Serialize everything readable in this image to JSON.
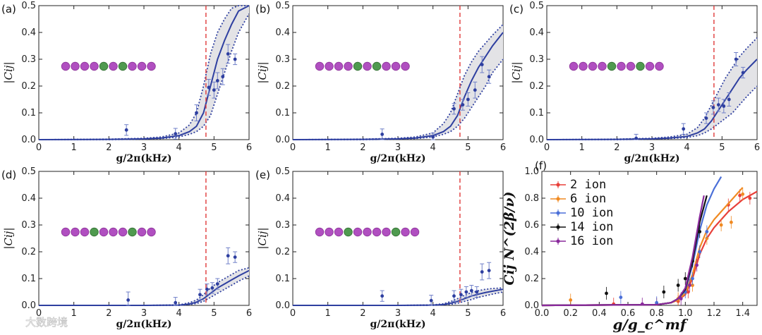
{
  "watermark": "大数跨境",
  "chart_data": [
    {
      "label": "(a)",
      "type": "line",
      "xlabel": "g/2π(kHz)",
      "ylabel": "|Cij|",
      "xlim": [
        0,
        6
      ],
      "ylim": [
        0,
        0.5
      ],
      "xticks": [
        "0",
        "1",
        "2",
        "3",
        "4",
        "5",
        "6"
      ],
      "yticks": [
        "0.0",
        "0.1",
        "0.2",
        "0.3",
        "0.4",
        "0.5"
      ],
      "critical_line_x": 4.77,
      "chain": [
        "purple",
        "purple",
        "purple",
        "purple",
        "green",
        "purple",
        "green",
        "purple",
        "purple",
        "purple"
      ],
      "theory": {
        "x": [
          0,
          2,
          3,
          3.5,
          4,
          4.3,
          4.5,
          4.7,
          4.9,
          5.1,
          5.3,
          5.5,
          5.7,
          6
        ],
        "mid": [
          0,
          0.001,
          0.003,
          0.006,
          0.015,
          0.03,
          0.05,
          0.1,
          0.2,
          0.3,
          0.37,
          0.43,
          0.48,
          0.5
        ],
        "upper": [
          0,
          0.002,
          0.005,
          0.01,
          0.025,
          0.055,
          0.1,
          0.2,
          0.32,
          0.4,
          0.45,
          0.49,
          0.5,
          0.5
        ],
        "lower": [
          0,
          0,
          0.002,
          0.004,
          0.01,
          0.02,
          0.03,
          0.05,
          0.09,
          0.17,
          0.25,
          0.33,
          0.4,
          0.47
        ]
      },
      "points": [
        {
          "x": 2.5,
          "y": 0.036,
          "err": 0.02
        },
        {
          "x": 3.9,
          "y": 0.022,
          "err": 0.02
        },
        {
          "x": 4.5,
          "y": 0.1,
          "err": 0.03
        },
        {
          "x": 4.85,
          "y": 0.195,
          "err": 0.03
        },
        {
          "x": 5.0,
          "y": 0.185,
          "err": 0.03
        },
        {
          "x": 5.1,
          "y": 0.22,
          "err": 0.03
        },
        {
          "x": 5.25,
          "y": 0.235,
          "err": 0.03
        },
        {
          "x": 5.4,
          "y": 0.32,
          "err": 0.035
        },
        {
          "x": 5.6,
          "y": 0.3,
          "err": 0.02
        }
      ]
    },
    {
      "label": "(b)",
      "type": "line",
      "xlabel": "g/2π(kHz)",
      "ylabel": "|Cij|",
      "xlim": [
        0,
        6
      ],
      "ylim": [
        0,
        0.5
      ],
      "xticks": [
        "0",
        "1",
        "2",
        "3",
        "4",
        "5",
        "6"
      ],
      "yticks": [
        "0.0",
        "0.1",
        "0.2",
        "0.3",
        "0.4",
        "0.5"
      ],
      "critical_line_x": 4.77,
      "chain": [
        "purple",
        "purple",
        "purple",
        "purple",
        "green",
        "purple",
        "green",
        "purple",
        "purple",
        "purple"
      ],
      "theory": {
        "x": [
          0,
          2,
          3,
          3.5,
          4,
          4.3,
          4.5,
          4.7,
          4.9,
          5.1,
          5.3,
          5.5,
          5.7,
          6
        ],
        "mid": [
          0,
          0.001,
          0.003,
          0.006,
          0.015,
          0.03,
          0.05,
          0.09,
          0.16,
          0.22,
          0.27,
          0.31,
          0.35,
          0.4
        ],
        "upper": [
          0,
          0.002,
          0.005,
          0.01,
          0.025,
          0.06,
          0.1,
          0.17,
          0.24,
          0.29,
          0.33,
          0.36,
          0.39,
          0.43
        ],
        "lower": [
          0,
          0,
          0.002,
          0.004,
          0.01,
          0.02,
          0.03,
          0.05,
          0.08,
          0.12,
          0.16,
          0.2,
          0.25,
          0.3
        ]
      },
      "points": [
        {
          "x": 2.55,
          "y": 0.02,
          "err": 0.02
        },
        {
          "x": 4.0,
          "y": 0.01,
          "err": 0.015
        },
        {
          "x": 4.6,
          "y": 0.115,
          "err": 0.02
        },
        {
          "x": 4.85,
          "y": 0.13,
          "err": 0.02
        },
        {
          "x": 5.0,
          "y": 0.15,
          "err": 0.025
        },
        {
          "x": 5.2,
          "y": 0.185,
          "err": 0.03
        },
        {
          "x": 5.4,
          "y": 0.28,
          "err": 0.03
        },
        {
          "x": 5.6,
          "y": 0.235,
          "err": 0.025
        }
      ]
    },
    {
      "label": "(c)",
      "type": "line",
      "xlabel": "g/2π(kHz)",
      "ylabel": "|Cij|",
      "xlim": [
        0,
        6
      ],
      "ylim": [
        0,
        0.5
      ],
      "xticks": [
        "0",
        "1",
        "2",
        "3",
        "4",
        "5",
        "6"
      ],
      "yticks": [
        "0.0",
        "0.1",
        "0.2",
        "0.3",
        "0.4",
        "0.5"
      ],
      "critical_line_x": 4.77,
      "chain": [
        "purple",
        "purple",
        "purple",
        "purple",
        "green",
        "purple",
        "purple",
        "green",
        "purple",
        "purple"
      ],
      "theory": {
        "x": [
          0,
          2,
          3,
          3.5,
          4,
          4.3,
          4.5,
          4.7,
          4.9,
          5.1,
          5.3,
          5.5,
          5.7,
          6
        ],
        "mid": [
          0,
          0.001,
          0.003,
          0.006,
          0.012,
          0.025,
          0.04,
          0.07,
          0.11,
          0.15,
          0.19,
          0.23,
          0.26,
          0.3
        ],
        "upper": [
          0,
          0.002,
          0.005,
          0.01,
          0.02,
          0.045,
          0.08,
          0.13,
          0.18,
          0.23,
          0.27,
          0.31,
          0.34,
          0.38
        ],
        "lower": [
          0,
          0,
          0.002,
          0.004,
          0.008,
          0.015,
          0.025,
          0.04,
          0.06,
          0.08,
          0.1,
          0.13,
          0.16,
          0.2
        ]
      },
      "points": [
        {
          "x": 2.55,
          "y": 0.005,
          "err": 0.015
        },
        {
          "x": 3.9,
          "y": 0.04,
          "err": 0.02
        },
        {
          "x": 4.55,
          "y": 0.08,
          "err": 0.02
        },
        {
          "x": 4.75,
          "y": 0.12,
          "err": 0.025
        },
        {
          "x": 4.9,
          "y": 0.13,
          "err": 0.025
        },
        {
          "x": 5.05,
          "y": 0.125,
          "err": 0.025
        },
        {
          "x": 5.2,
          "y": 0.15,
          "err": 0.025
        },
        {
          "x": 5.4,
          "y": 0.3,
          "err": 0.025
        },
        {
          "x": 5.6,
          "y": 0.25,
          "err": 0.02
        }
      ]
    },
    {
      "label": "(d)",
      "type": "line",
      "xlabel": "g/2π(kHz)",
      "ylabel": "|Cij|",
      "xlim": [
        0,
        6
      ],
      "ylim": [
        0,
        0.5
      ],
      "xticks": [
        "0",
        "1",
        "2",
        "3",
        "4",
        "5",
        "6"
      ],
      "yticks": [
        "0.0",
        "0.1",
        "0.2",
        "0.3",
        "0.4",
        "0.5"
      ],
      "critical_line_x": 4.77,
      "chain": [
        "purple",
        "purple",
        "purple",
        "green",
        "purple",
        "purple",
        "purple",
        "green",
        "purple",
        "purple"
      ],
      "theory": {
        "x": [
          0,
          3,
          4,
          4.3,
          4.5,
          4.7,
          4.9,
          5.1,
          5.3,
          5.5,
          5.7,
          6
        ],
        "mid": [
          0,
          0,
          0.001,
          0.005,
          0.012,
          0.025,
          0.045,
          0.065,
          0.08,
          0.095,
          0.11,
          0.13
        ],
        "upper": [
          0,
          0,
          0.002,
          0.01,
          0.02,
          0.04,
          0.065,
          0.085,
          0.1,
          0.115,
          0.13,
          0.14
        ],
        "lower": [
          0,
          0,
          0,
          0.003,
          0.007,
          0.015,
          0.03,
          0.045,
          0.06,
          0.075,
          0.09,
          0.11
        ]
      },
      "points": [
        {
          "x": 2.55,
          "y": 0.02,
          "err": 0.03
        },
        {
          "x": 3.9,
          "y": 0.01,
          "err": 0.02
        },
        {
          "x": 4.6,
          "y": 0.04,
          "err": 0.02
        },
        {
          "x": 4.8,
          "y": 0.06,
          "err": 0.02
        },
        {
          "x": 4.95,
          "y": 0.065,
          "err": 0.02
        },
        {
          "x": 5.1,
          "y": 0.08,
          "err": 0.02
        },
        {
          "x": 5.4,
          "y": 0.185,
          "err": 0.03
        },
        {
          "x": 5.6,
          "y": 0.18,
          "err": 0.02
        }
      ]
    },
    {
      "label": "(e)",
      "type": "line",
      "xlabel": "g/2π(kHz)",
      "ylabel": "|Cij|",
      "xlim": [
        0,
        6
      ],
      "ylim": [
        0,
        0.5
      ],
      "xticks": [
        "0",
        "1",
        "2",
        "3",
        "4",
        "5",
        "6"
      ],
      "yticks": [
        "0.0",
        "0.1",
        "0.2",
        "0.3",
        "0.4",
        "0.5"
      ],
      "critical_line_x": 4.77,
      "chain": [
        "purple",
        "purple",
        "purple",
        "green",
        "purple",
        "purple",
        "purple",
        "purple",
        "green",
        "purple",
        "purple"
      ],
      "theory": {
        "x": [
          0,
          3,
          4,
          4.3,
          4.5,
          4.7,
          4.9,
          5.1,
          5.3,
          5.5,
          5.7,
          6
        ],
        "mid": [
          0,
          0,
          0.001,
          0.003,
          0.008,
          0.015,
          0.025,
          0.035,
          0.042,
          0.048,
          0.053,
          0.06
        ],
        "upper": [
          0,
          0,
          0.002,
          0.006,
          0.014,
          0.025,
          0.038,
          0.048,
          0.055,
          0.06,
          0.063,
          0.065
        ],
        "lower": [
          0,
          0,
          0,
          0.002,
          0.004,
          0.008,
          0.015,
          0.022,
          0.03,
          0.036,
          0.042,
          0.05
        ]
      },
      "points": [
        {
          "x": 2.55,
          "y": 0.035,
          "err": 0.02
        },
        {
          "x": 3.95,
          "y": 0.018,
          "err": 0.02
        },
        {
          "x": 4.6,
          "y": 0.035,
          "err": 0.02
        },
        {
          "x": 4.8,
          "y": 0.04,
          "err": 0.02
        },
        {
          "x": 4.95,
          "y": 0.05,
          "err": 0.02
        },
        {
          "x": 5.1,
          "y": 0.055,
          "err": 0.02
        },
        {
          "x": 5.25,
          "y": 0.05,
          "err": 0.02
        },
        {
          "x": 5.4,
          "y": 0.125,
          "err": 0.03
        },
        {
          "x": 5.6,
          "y": 0.13,
          "err": 0.03
        }
      ]
    },
    {
      "label": "(f)",
      "type": "line",
      "xlabel": "g/g_c^mf",
      "ylabel": "Cij N^(2β/ν)",
      "xlim": [
        0,
        1.5
      ],
      "ylim": [
        0,
        1.0
      ],
      "xticks": [
        "0.0",
        "0.2",
        "0.4",
        "0.6",
        "0.8",
        "1.0",
        "1.2",
        "1.4"
      ],
      "yticks": [
        "0.0",
        "0.2",
        "0.4",
        "0.6",
        "0.8",
        "1.0"
      ],
      "legend_placement": "top-left",
      "series": [
        {
          "name": "2 ion",
          "color": "#e8403a",
          "curve": {
            "x": [
              0,
              0.8,
              0.9,
              0.95,
              1.0,
              1.05,
              1.1,
              1.15,
              1.2,
              1.3,
              1.4,
              1.5
            ],
            "y": [
              0,
              0.005,
              0.02,
              0.04,
              0.08,
              0.2,
              0.38,
              0.5,
              0.58,
              0.7,
              0.79,
              0.85
            ]
          },
          "points": [
            {
              "x": 0.5,
              "y": 0.01
            },
            {
              "x": 0.8,
              "y": 0.01
            },
            {
              "x": 0.95,
              "y": 0.03
            },
            {
              "x": 1.02,
              "y": 0.1
            },
            {
              "x": 1.1,
              "y": 0.4
            },
            {
              "x": 1.3,
              "y": 0.75
            },
            {
              "x": 1.38,
              "y": 0.82
            },
            {
              "x": 1.45,
              "y": 0.8
            }
          ]
        },
        {
          "name": "6 ion",
          "color": "#f08a22",
          "curve": {
            "x": [
              0,
              0.8,
              0.9,
              0.95,
              1.0,
              1.05,
              1.1,
              1.15,
              1.2,
              1.3,
              1.4
            ],
            "y": [
              0,
              0.005,
              0.02,
              0.04,
              0.09,
              0.23,
              0.43,
              0.56,
              0.64,
              0.76,
              0.88
            ]
          },
          "points": [
            {
              "x": 0.2,
              "y": 0.04
            },
            {
              "x": 0.95,
              "y": 0.05
            },
            {
              "x": 1.05,
              "y": 0.15
            },
            {
              "x": 1.15,
              "y": 0.5
            },
            {
              "x": 1.25,
              "y": 0.6
            },
            {
              "x": 1.32,
              "y": 0.62
            },
            {
              "x": 1.4,
              "y": 0.83
            }
          ]
        },
        {
          "name": "10 ion",
          "color": "#4a6fd8",
          "curve": {
            "x": [
              0,
              0.8,
              0.9,
              0.95,
              1.0,
              1.05,
              1.1,
              1.15,
              1.2,
              1.25
            ],
            "y": [
              0,
              0.005,
              0.02,
              0.05,
              0.11,
              0.3,
              0.56,
              0.75,
              0.87,
              0.96
            ]
          },
          "points": [
            {
              "x": 0.55,
              "y": 0.06
            },
            {
              "x": 0.8,
              "y": 0.02
            },
            {
              "x": 1.0,
              "y": 0.1
            },
            {
              "x": 1.05,
              "y": 0.2
            },
            {
              "x": 1.1,
              "y": 0.4
            },
            {
              "x": 1.15,
              "y": 0.55
            }
          ]
        },
        {
          "name": "14 ion",
          "color": "#111111",
          "curve": {
            "x": [
              0,
              0.8,
              0.9,
              0.95,
              1.0,
              1.05,
              1.1,
              1.15
            ],
            "y": [
              0,
              0.005,
              0.02,
              0.05,
              0.12,
              0.33,
              0.62,
              0.82
            ]
          },
          "points": [
            {
              "x": 0.45,
              "y": 0.09
            },
            {
              "x": 0.85,
              "y": 0.1
            },
            {
              "x": 0.95,
              "y": 0.15
            },
            {
              "x": 1.0,
              "y": 0.2
            },
            {
              "x": 1.05,
              "y": 0.33
            },
            {
              "x": 1.1,
              "y": 0.55
            }
          ]
        },
        {
          "name": "16 ion",
          "color": "#8a2a9c",
          "curve": {
            "x": [
              0,
              0.8,
              0.9,
              0.95,
              1.0,
              1.05,
              1.1,
              1.13
            ],
            "y": [
              0,
              0.005,
              0.02,
              0.05,
              0.13,
              0.36,
              0.66,
              0.82
            ]
          },
          "points": [
            {
              "x": 0.7,
              "y": 0.01
            },
            {
              "x": 0.97,
              "y": 0.05
            },
            {
              "x": 1.03,
              "y": 0.15
            },
            {
              "x": 1.08,
              "y": 0.3
            }
          ]
        }
      ]
    }
  ]
}
